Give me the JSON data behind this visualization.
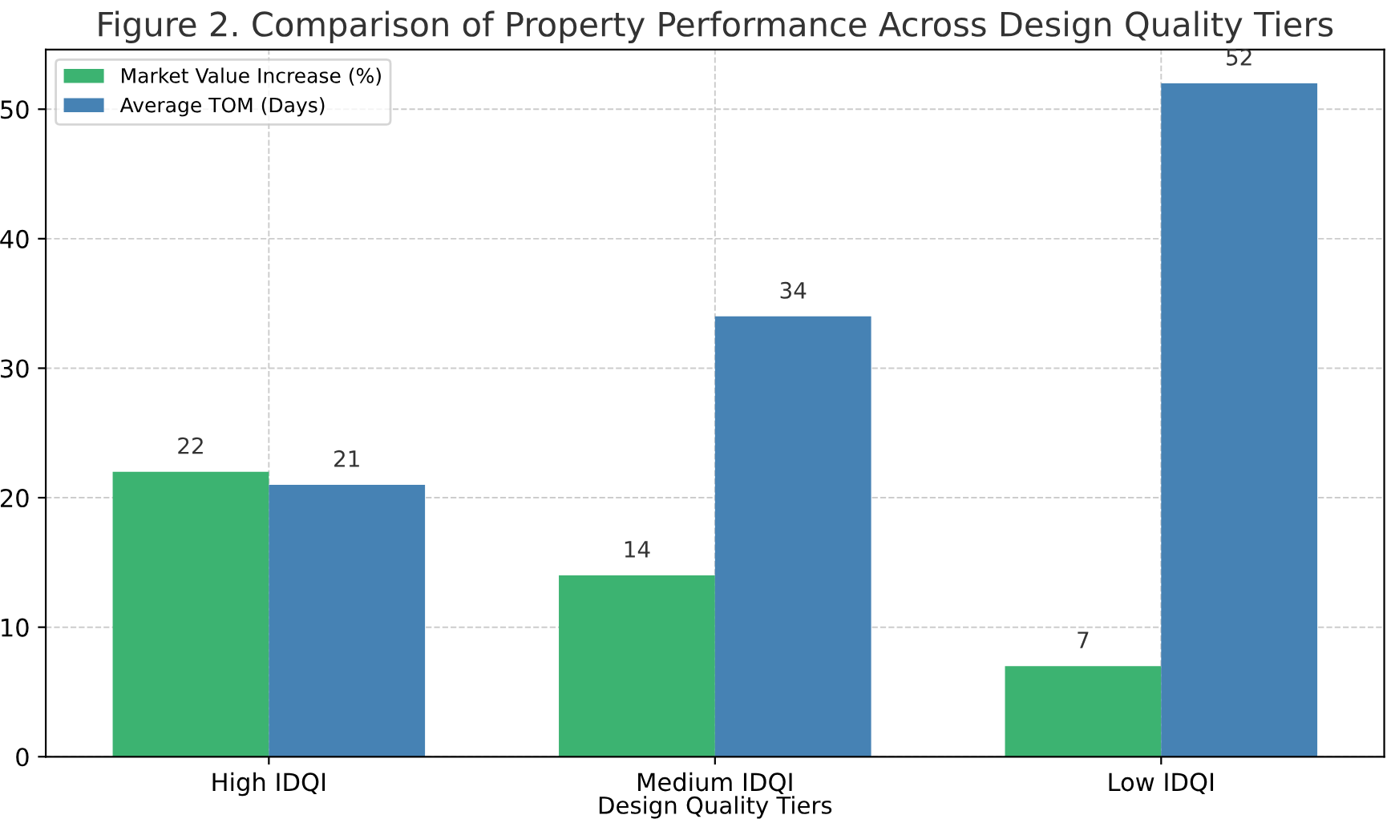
{
  "chart_data": {
    "type": "bar",
    "title": "Figure 2. Comparison of Property Performance Across Design Quality Tiers",
    "xlabel": "Design Quality Tiers",
    "categories": [
      "High IDQI",
      "Medium IDQI",
      "Low IDQI"
    ],
    "series": [
      {
        "name": "Market Value Increase (%)",
        "color": "#3cb371",
        "values": [
          22,
          14,
          7
        ]
      },
      {
        "name": "Average TOM (Days)",
        "color": "#4682b4",
        "values": [
          21,
          34,
          52
        ]
      }
    ],
    "ylim": [
      0,
      54.6
    ],
    "yticks": [
      0,
      10,
      20,
      30,
      40,
      50
    ],
    "grid": true,
    "legend": "top left",
    "data_labels": true
  }
}
